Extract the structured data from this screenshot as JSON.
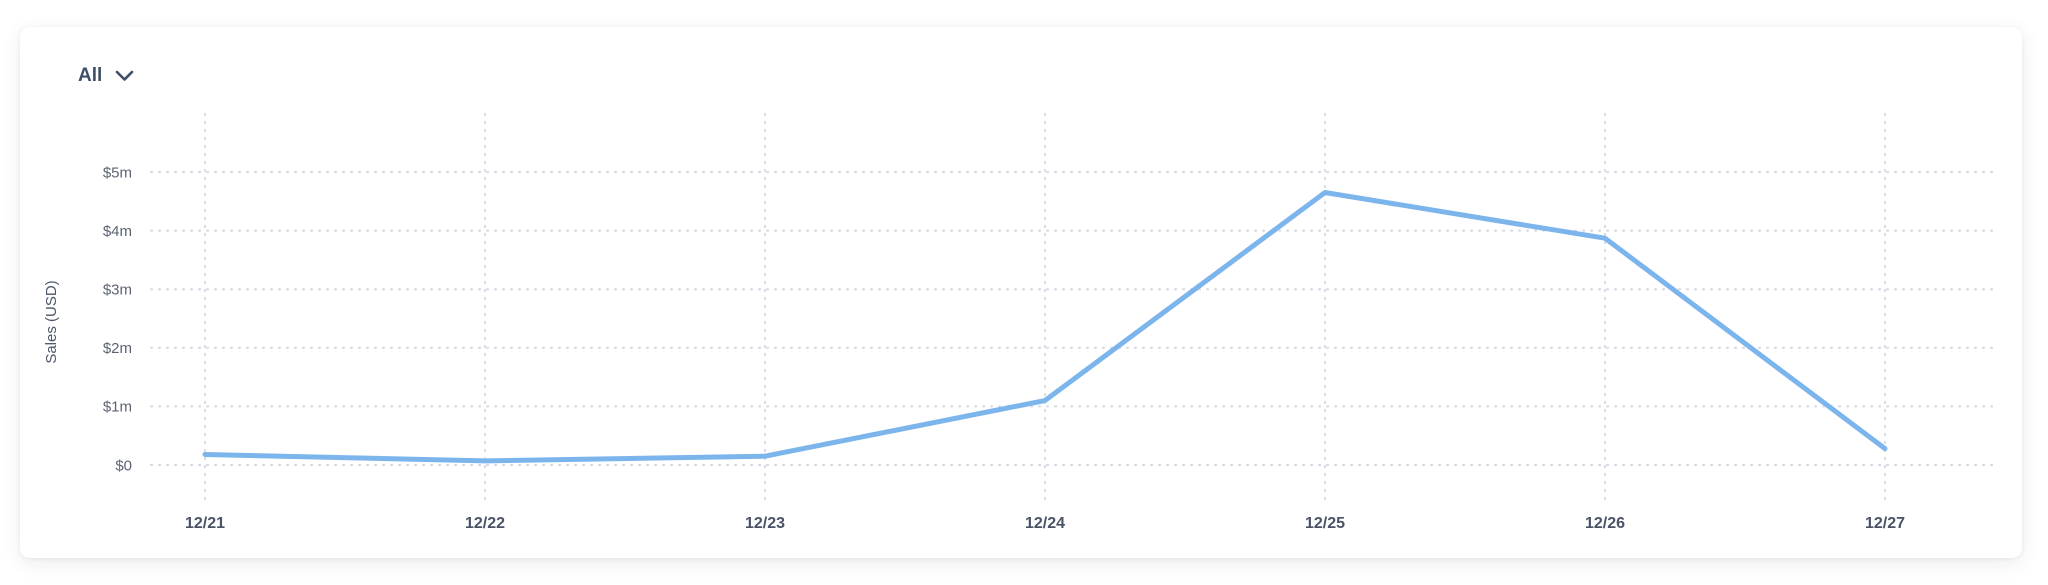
{
  "card": {
    "filter": {
      "label": "All",
      "icon": "chevron-down-icon"
    }
  },
  "chart_data": {
    "type": "line",
    "title": "",
    "x": [
      "12/21",
      "12/22",
      "12/23",
      "12/24",
      "12/25",
      "12/26",
      "12/27"
    ],
    "series": [
      {
        "name": "Sales",
        "values_millions": [
          0.18,
          0.07,
          0.15,
          1.1,
          4.65,
          3.87,
          0.28
        ]
      }
    ],
    "xlabel": "",
    "ylabel": "Sales (USD)",
    "yticks": [
      {
        "value": 0,
        "label": "$0"
      },
      {
        "value": 1,
        "label": "$1m"
      },
      {
        "value": 2,
        "label": "$2m"
      },
      {
        "value": 3,
        "label": "$3m"
      },
      {
        "value": 4,
        "label": "$4m"
      },
      {
        "value": 5,
        "label": "$5m"
      }
    ],
    "ylim": [
      0,
      6
    ],
    "grid": "dotted",
    "legend": "none",
    "colors": {
      "line": "#7cb5ec",
      "grid": "#d9dce2",
      "y_label": "#5b6372",
      "x_label": "#4a5265",
      "axis_title": "#4a5568"
    }
  }
}
